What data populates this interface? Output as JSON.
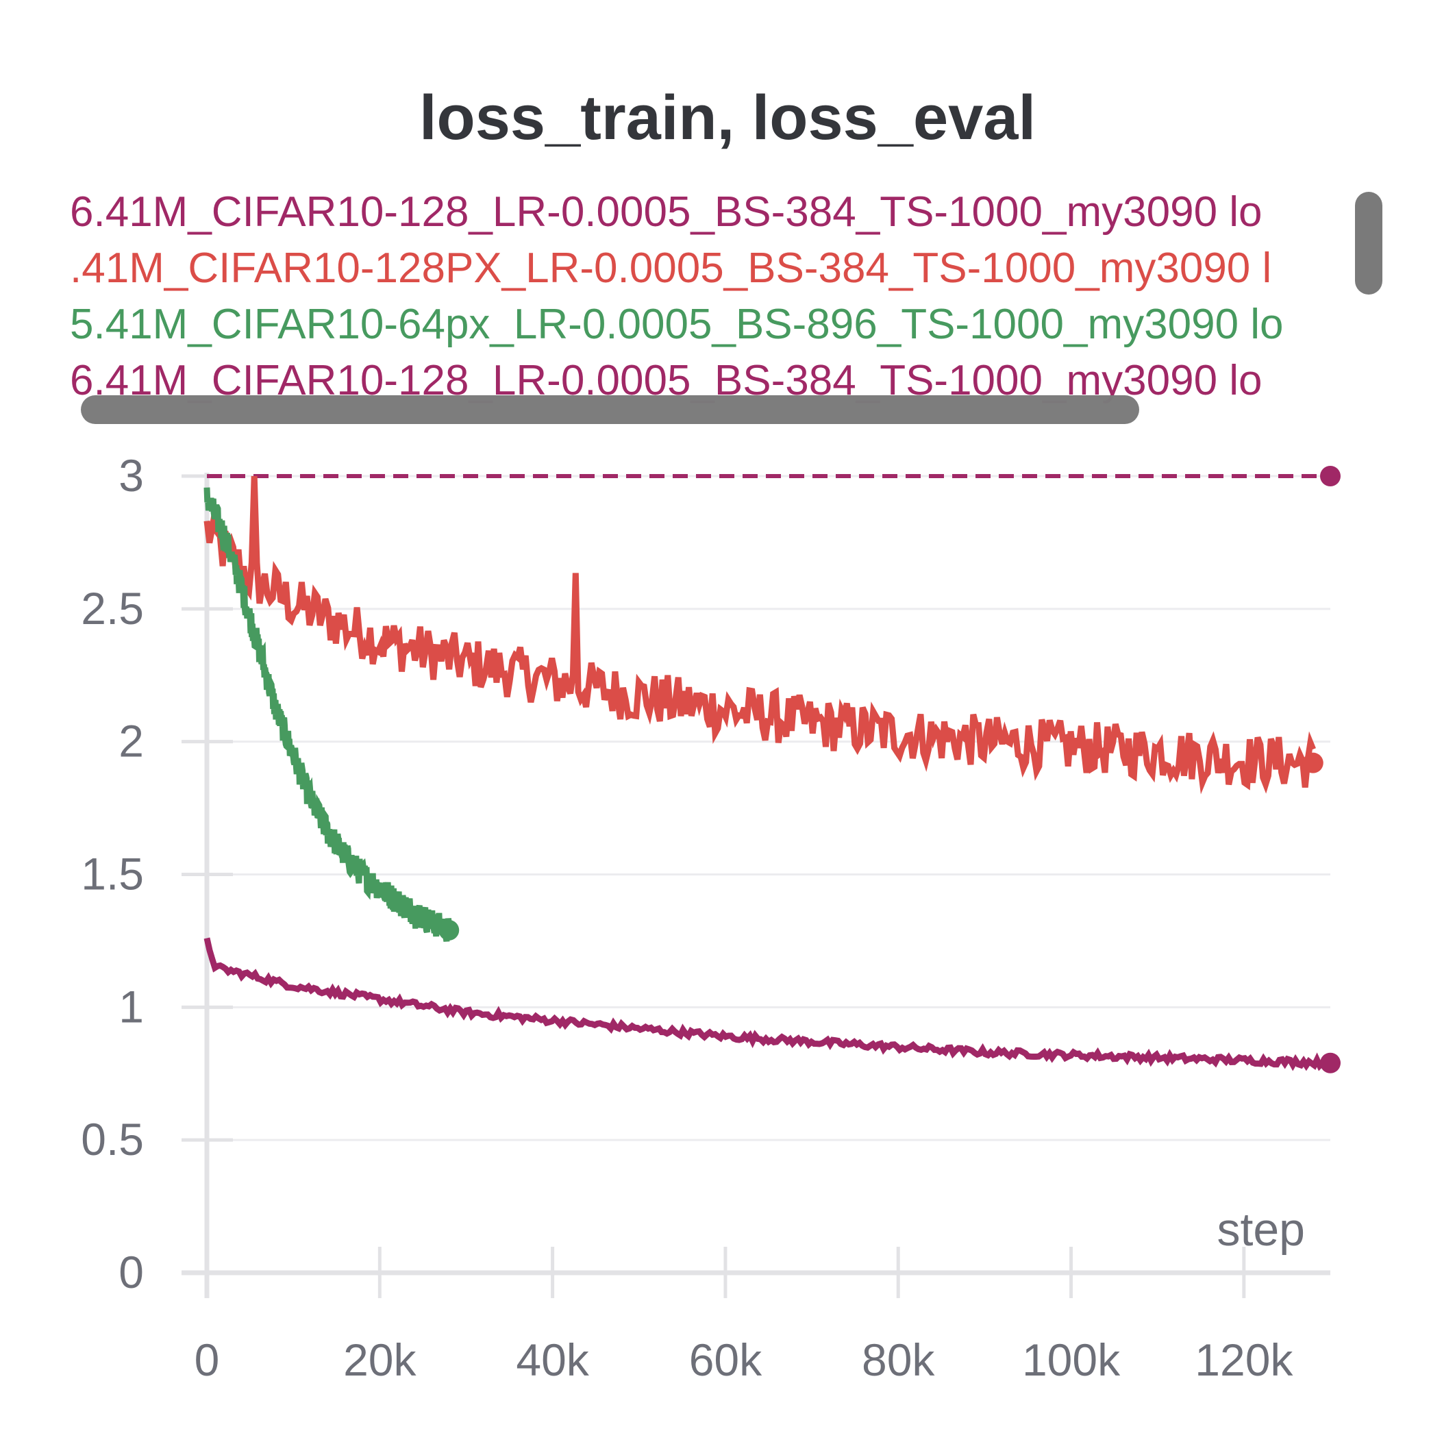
{
  "chart_data": {
    "type": "line",
    "title": "loss_train, loss_eval",
    "xlabel": "step",
    "ylabel": "",
    "xlim": [
      0,
      130000
    ],
    "ylim": [
      0,
      3
    ],
    "x_ticks": [
      "0",
      "20k",
      "40k",
      "60k",
      "80k",
      "100k",
      "120k"
    ],
    "x_tick_values": [
      0,
      20000,
      40000,
      60000,
      80000,
      100000,
      120000
    ],
    "y_ticks": [
      "0",
      "0.5",
      "1",
      "1.5",
      "2",
      "2.5",
      "3"
    ],
    "y_tick_values": [
      0,
      0.5,
      1,
      1.5,
      2,
      2.5,
      3
    ],
    "grid": true,
    "legend_position": "top",
    "series": [
      {
        "name": "6.41M_CIFAR10-128_LR-0.0005_BS-384_TS-1000_my3090 lo",
        "color": "#a02866",
        "style": "dashed",
        "x": [
          0,
          130000
        ],
        "y": [
          3.0,
          3.0
        ]
      },
      {
        "name": ".41M_CIFAR10-128PX_LR-0.0005_BS-384_TS-1000_my3090 l",
        "color": "#db4d48",
        "style": "noisy",
        "noise": 0.1,
        "x": [
          0,
          2000,
          5000,
          10000,
          15000,
          20000,
          30000,
          40000,
          50000,
          60000,
          70000,
          80000,
          90000,
          100000,
          110000,
          120000,
          128000
        ],
        "y": [
          2.8,
          2.72,
          2.62,
          2.52,
          2.45,
          2.38,
          2.3,
          2.23,
          2.17,
          2.12,
          2.07,
          2.03,
          2.0,
          1.98,
          1.96,
          1.93,
          1.92
        ]
      },
      {
        "name": "5.41M_CIFAR10-64px_LR-0.0005_BS-896_TS-1000_my3090 lo",
        "color": "#479a5f",
        "style": "noisy",
        "noise": 0.05,
        "x": [
          0,
          2000,
          4000,
          6000,
          8000,
          10000,
          12000,
          14000,
          16000,
          18000,
          20000,
          22000,
          24000,
          26000,
          28000
        ],
        "y": [
          2.92,
          2.78,
          2.58,
          2.35,
          2.12,
          1.95,
          1.78,
          1.66,
          1.57,
          1.5,
          1.45,
          1.4,
          1.36,
          1.32,
          1.29
        ]
      },
      {
        "name": "6.41M_CIFAR10-128_LR-0.0005_BS-384_TS-1000_my3090 lo",
        "color": "#a02866",
        "style": "noisy",
        "noise": 0.012,
        "x": [
          0,
          1000,
          5000,
          10000,
          20000,
          30000,
          40000,
          50000,
          60000,
          70000,
          80000,
          90000,
          100000,
          110000,
          120000,
          130000
        ],
        "y": [
          1.25,
          1.15,
          1.12,
          1.08,
          1.03,
          0.98,
          0.95,
          0.92,
          0.89,
          0.87,
          0.85,
          0.83,
          0.82,
          0.81,
          0.8,
          0.79
        ]
      }
    ]
  },
  "colors": {
    "axis": "#e2e2e5",
    "grid": "#ececef",
    "text": "#6d6f78",
    "title": "#34363b"
  }
}
